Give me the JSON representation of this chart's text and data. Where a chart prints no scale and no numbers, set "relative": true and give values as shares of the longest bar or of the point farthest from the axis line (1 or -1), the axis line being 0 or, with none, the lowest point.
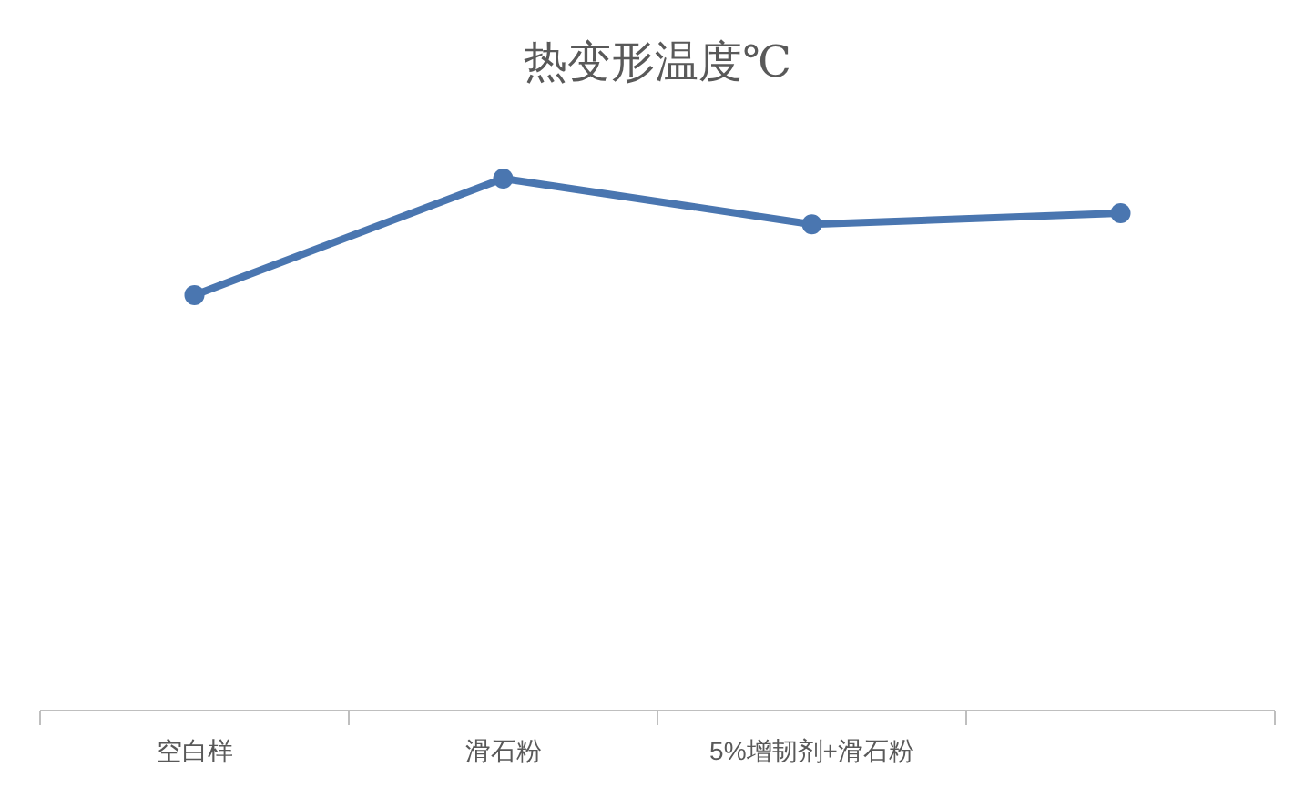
{
  "chart_data": {
    "type": "line",
    "title": "热变形温度℃",
    "relative": true,
    "categories": [
      "空白样",
      "滑石粉",
      "5%增韧剂+滑石粉",
      null
    ],
    "series": [
      {
        "color": "#4a76b0",
        "values": [
          0.781,
          1,
          0.914,
          0.935
        ]
      }
    ],
    "marker": "circle",
    "line_style": "solid",
    "grid": false
  }
}
